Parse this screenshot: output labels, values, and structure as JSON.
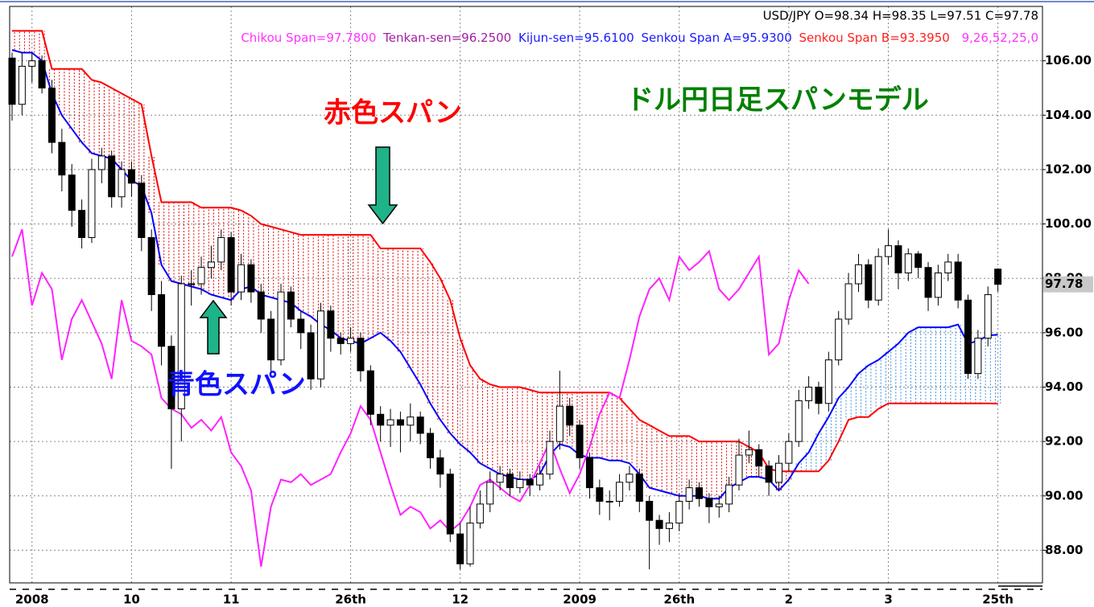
{
  "chart_data": {
    "type": "candlestick",
    "ohlc_label": "USD/JPY O=98.34 H=98.35 L=97.51 C=97.78",
    "legend": [
      {
        "text": "Chikou Span=97.7800",
        "color": "#ff33ff"
      },
      {
        "text": "Tenkan-sen=96.2500",
        "color": "#a0209f"
      },
      {
        "text": "Kijun-sen=95.6100",
        "color": "#1a1aff"
      },
      {
        "text": "Senkou Span A=95.9300",
        "color": "#1a1aff"
      },
      {
        "text": "Senkou Span B=93.3950",
        "color": "#ff2020"
      },
      {
        "text": "9,26,52,25,0",
        "color": "#ff33ff"
      }
    ],
    "annotations": [
      {
        "text": "赤色スパン",
        "color": "#ff0000"
      },
      {
        "text": "青色スパン",
        "color": "#1010ff"
      },
      {
        "text": "ドル円日足スパンモデル",
        "color": "#008000"
      }
    ],
    "categories": [
      null,
      null,
      "2008",
      null,
      null,
      null,
      null,
      null,
      null,
      null,
      null,
      null,
      "10",
      null,
      null,
      null,
      null,
      null,
      null,
      null,
      null,
      null,
      "11",
      null,
      null,
      null,
      null,
      null,
      null,
      null,
      null,
      null,
      null,
      null,
      "26th",
      null,
      null,
      null,
      null,
      null,
      null,
      null,
      null,
      null,
      null,
      "12",
      null,
      null,
      null,
      null,
      null,
      null,
      null,
      null,
      null,
      null,
      null,
      "2009",
      null,
      null,
      null,
      null,
      null,
      null,
      null,
      null,
      null,
      "26th",
      null,
      null,
      null,
      null,
      null,
      null,
      null,
      null,
      null,
      null,
      "2",
      null,
      null,
      null,
      null,
      null,
      null,
      null,
      null,
      null,
      "3",
      null,
      null,
      null,
      null,
      null,
      null,
      null,
      null,
      null,
      null,
      "25th"
    ],
    "open": [
      106.1,
      104.4,
      105.8,
      106.0,
      105.0,
      103.0,
      101.8,
      100.5,
      99.5,
      102.0,
      102.5,
      101.0,
      102.0,
      101.5,
      99.5,
      97.4,
      95.5,
      93.2,
      97.8,
      97.8,
      98.4,
      98.6,
      99.5,
      97.5,
      98.5,
      97.5,
      96.5,
      95.0,
      97.5,
      96.5,
      96.0,
      94.3,
      96.8,
      95.8,
      95.6,
      95.8,
      94.6,
      93.0,
      92.6,
      92.8,
      92.6,
      92.9,
      92.3,
      91.4,
      90.8,
      88.6,
      87.5,
      89.0,
      89.7,
      90.5,
      90.8,
      90.3,
      90.6,
      90.4,
      90.8,
      92.0,
      93.3,
      92.6,
      91.4,
      90.3,
      89.8,
      89.8,
      90.5,
      90.8,
      89.8,
      89.1,
      88.8,
      89.0,
      89.8,
      90.3,
      89.9,
      89.6,
      89.7,
      90.4,
      91.5,
      91.7,
      91.1,
      90.5,
      91.2,
      92.0,
      93.5,
      94.0,
      93.4,
      95.0,
      96.5,
      97.8,
      98.5,
      97.2,
      98.8,
      99.2,
      98.2,
      98.9,
      98.4,
      97.3,
      98.2,
      98.6,
      97.2,
      94.5,
      95.8,
      98.34
    ],
    "high": [
      106.3,
      106.3,
      106.3,
      106.2,
      105.3,
      103.5,
      102.2,
      100.9,
      102.4,
      102.8,
      102.7,
      102.3,
      102.3,
      101.8,
      99.8,
      97.9,
      95.9,
      98.1,
      98.3,
      98.8,
      99.2,
      99.8,
      99.7,
      98.9,
      98.7,
      97.8,
      96.8,
      97.8,
      97.7,
      96.8,
      96.3,
      97.1,
      97.0,
      96.0,
      96.2,
      96.0,
      94.8,
      93.3,
      93.2,
      93.1,
      93.4,
      93.1,
      92.5,
      91.7,
      91.0,
      89.0,
      89.6,
      90.2,
      90.9,
      91.1,
      91.0,
      90.9,
      90.8,
      91.1,
      92.4,
      94.6,
      93.6,
      92.8,
      91.6,
      90.6,
      90.2,
      90.8,
      91.1,
      91.0,
      90.0,
      89.3,
      89.4,
      90.1,
      90.6,
      90.5,
      90.1,
      90.0,
      90.7,
      92.1,
      92.4,
      91.9,
      91.3,
      91.5,
      92.3,
      93.9,
      94.4,
      94.2,
      95.3,
      96.8,
      98.2,
      98.9,
      98.7,
      99.1,
      99.8,
      99.4,
      99.1,
      99.0,
      98.6,
      98.5,
      98.9,
      98.9,
      97.4,
      96.1,
      97.7,
      98.35
    ],
    "low": [
      103.8,
      104.0,
      105.2,
      104.8,
      102.6,
      101.2,
      99.9,
      99.1,
      99.3,
      101.5,
      100.6,
      100.6,
      101.0,
      99.0,
      96.8,
      94.8,
      91.0,
      92.0,
      97.0,
      97.4,
      98.0,
      98.3,
      97.0,
      97.2,
      97.1,
      96.0,
      94.5,
      94.8,
      96.2,
      95.4,
      93.9,
      94.0,
      95.3,
      95.2,
      95.3,
      94.2,
      92.6,
      92.0,
      91.8,
      91.6,
      92.0,
      91.9,
      91.0,
      90.3,
      88.3,
      87.3,
      87.4,
      88.8,
      89.4,
      90.2,
      90.0,
      90.1,
      90.0,
      90.2,
      90.6,
      91.7,
      92.2,
      91.0,
      89.9,
      89.3,
      89.1,
      89.6,
      90.2,
      89.4,
      87.3,
      88.2,
      88.3,
      88.7,
      89.5,
      89.6,
      89.0,
      89.2,
      89.4,
      90.2,
      91.2,
      90.7,
      90.0,
      90.2,
      90.9,
      91.8,
      93.2,
      93.0,
      93.1,
      94.8,
      96.3,
      97.5,
      96.9,
      97.0,
      98.5,
      97.6,
      97.9,
      98.0,
      96.8,
      97.0,
      97.9,
      96.9,
      94.3,
      94.3,
      95.5,
      97.51
    ],
    "close": [
      104.4,
      105.8,
      106.0,
      105.0,
      103.0,
      101.8,
      100.5,
      99.5,
      102.0,
      102.5,
      101.0,
      102.0,
      101.5,
      99.5,
      97.4,
      95.5,
      93.2,
      97.8,
      97.8,
      98.4,
      98.6,
      99.5,
      97.5,
      98.5,
      97.5,
      96.5,
      95.0,
      97.5,
      96.5,
      96.0,
      94.3,
      96.8,
      95.8,
      95.6,
      95.8,
      94.6,
      93.0,
      92.6,
      92.8,
      92.6,
      92.9,
      92.3,
      91.4,
      90.8,
      88.6,
      87.5,
      89.0,
      89.7,
      90.5,
      90.8,
      90.3,
      90.6,
      90.4,
      90.8,
      92.0,
      93.3,
      92.6,
      91.4,
      90.3,
      89.8,
      89.8,
      90.5,
      90.8,
      89.8,
      89.1,
      88.8,
      89.0,
      89.8,
      90.3,
      89.9,
      89.6,
      89.7,
      90.4,
      91.5,
      91.7,
      91.1,
      90.5,
      91.2,
      92.0,
      93.5,
      94.0,
      93.4,
      95.0,
      96.5,
      97.8,
      98.5,
      97.2,
      98.8,
      99.2,
      98.2,
      98.9,
      98.4,
      97.3,
      98.2,
      98.6,
      97.2,
      94.5,
      95.8,
      97.4,
      97.78
    ],
    "up_color": "#ffffff",
    "down_color": "#000000",
    "series": [
      {
        "name": "Senkou Span B",
        "color": "#ff0000",
        "values": [
          107.1,
          107.1,
          107.1,
          107.1,
          105.7,
          105.7,
          105.7,
          105.7,
          105.3,
          105.2,
          105.0,
          104.8,
          104.6,
          104.4,
          102.5,
          100.8,
          100.8,
          100.8,
          100.8,
          100.6,
          100.6,
          100.6,
          100.6,
          100.5,
          100.3,
          100.0,
          99.9,
          99.8,
          99.7,
          99.6,
          99.6,
          99.6,
          99.6,
          99.6,
          99.6,
          99.6,
          99.6,
          99.1,
          99.1,
          99.1,
          99.1,
          99.1,
          98.6,
          98.0,
          97.2,
          95.8,
          94.8,
          94.3,
          94.1,
          94.0,
          94.0,
          94.0,
          93.9,
          93.8,
          93.8,
          93.8,
          93.8,
          93.8,
          93.8,
          93.8,
          93.8,
          93.6,
          93.2,
          92.8,
          92.6,
          92.4,
          92.2,
          92.2,
          92.2,
          92.0,
          92.0,
          92.0,
          92.0,
          92.0,
          91.8,
          91.6,
          91.0,
          90.9,
          90.9,
          90.9,
          90.9,
          90.9,
          91.3,
          92.0,
          92.8,
          92.9,
          92.9,
          93.2,
          93.4,
          93.4,
          93.4,
          93.4,
          93.4,
          93.4,
          93.4,
          93.4,
          93.4,
          93.4,
          93.4,
          93.395
        ]
      },
      {
        "name": "Senkou Span A",
        "color": "#0000ff",
        "values": [
          106.4,
          106.3,
          106.3,
          106.0,
          104.8,
          104.0,
          103.5,
          103.0,
          102.6,
          102.5,
          102.4,
          102.0,
          101.6,
          101.4,
          100.4,
          98.5,
          97.9,
          97.8,
          97.7,
          97.6,
          97.4,
          97.3,
          97.2,
          97.6,
          97.7,
          97.4,
          97.3,
          97.2,
          97.1,
          96.8,
          96.6,
          96.3,
          96.1,
          95.8,
          95.7,
          95.6,
          95.8,
          96.0,
          95.7,
          95.3,
          94.7,
          94.1,
          93.4,
          92.8,
          92.3,
          91.9,
          91.6,
          91.2,
          91.0,
          90.8,
          90.7,
          90.6,
          90.6,
          90.8,
          91.5,
          91.9,
          91.8,
          91.5,
          91.4,
          91.4,
          91.3,
          91.3,
          91.2,
          90.8,
          90.3,
          90.2,
          90.1,
          90.0,
          90.0,
          90.0,
          89.9,
          89.9,
          90.3,
          90.5,
          90.7,
          90.7,
          90.6,
          90.2,
          90.6,
          91.2,
          91.6,
          92.3,
          92.9,
          93.6,
          94.0,
          94.5,
          94.8,
          95.0,
          95.3,
          95.6,
          96.0,
          96.2,
          96.2,
          96.2,
          96.2,
          96.3,
          95.6,
          95.7,
          95.9,
          95.93
        ]
      },
      {
        "name": "Chikou Span",
        "color": "#ff22ff",
        "values": [
          98.8,
          99.8,
          97.0,
          98.2,
          97.6,
          95.0,
          96.5,
          97.2,
          96.4,
          95.6,
          94.3,
          97.2,
          95.7,
          95.5,
          95.2,
          93.6,
          93.2,
          93.0,
          92.5,
          92.8,
          92.4,
          92.9,
          91.6,
          91.1,
          90.2,
          87.4,
          89.6,
          90.6,
          90.5,
          90.8,
          90.4,
          90.6,
          90.8,
          91.6,
          92.3,
          93.3,
          92.8,
          91.6,
          90.4,
          89.3,
          89.6,
          89.4,
          88.8,
          89.1,
          88.7,
          89.0,
          89.6,
          90.4,
          90.6,
          90.3,
          90.0,
          89.8,
          90.4,
          91.2,
          92.0,
          91.0,
          90.1,
          90.8,
          91.8,
          93.0,
          93.8,
          93.6,
          95.0,
          96.6,
          97.6,
          98.0,
          97.2,
          98.8,
          98.3,
          98.6,
          99.0,
          97.6,
          97.2,
          97.6,
          98.2,
          98.8,
          95.2,
          95.6,
          97.2,
          98.3,
          97.8,
          null,
          null,
          null,
          null,
          null,
          null,
          null,
          null,
          null,
          null,
          null,
          null,
          null,
          null,
          null,
          null,
          null,
          null,
          null
        ]
      }
    ],
    "cloud_colors": {
      "span_b_above": "#e00000",
      "span_a_above": "#3a8fe0"
    },
    "ylim": [
      86.8,
      108.0
    ],
    "yticks": [
      {
        "value": 88,
        "label": "88.00"
      },
      {
        "value": 90,
        "label": "90.00"
      },
      {
        "value": 92,
        "label": "92.00"
      },
      {
        "value": 94,
        "label": "94.00"
      },
      {
        "value": 96,
        "label": "96.00"
      },
      {
        "value": 98,
        "label": "98.00"
      },
      {
        "value": 100,
        "label": "100.00"
      },
      {
        "value": 102,
        "label": "102.00"
      },
      {
        "value": 104,
        "label": "104.00"
      },
      {
        "value": 106,
        "label": "106.00"
      }
    ],
    "grid": true
  }
}
